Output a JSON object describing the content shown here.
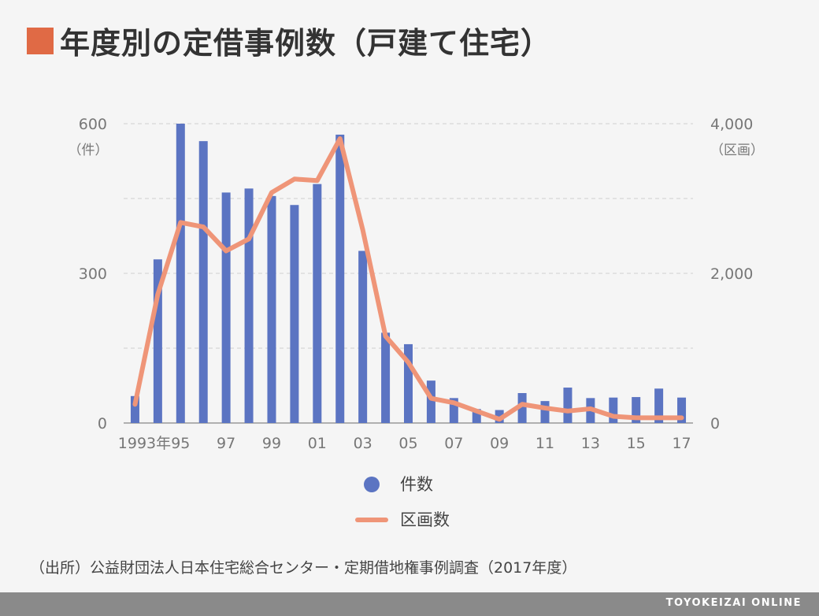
{
  "header": {
    "title": "年度別の定借事例数（戸建て住宅）",
    "title_square_color": "#e06a45"
  },
  "chart_data": {
    "type": "bar",
    "title": "年度別の定借事例数（戸建て住宅）",
    "x": [
      "1993",
      "1994",
      "1995",
      "1996",
      "1997",
      "1998",
      "1999",
      "2000",
      "2001",
      "2002",
      "2003",
      "2004",
      "2005",
      "2006",
      "2007",
      "2008",
      "2009",
      "2010",
      "2011",
      "2012",
      "2013",
      "2014",
      "2015",
      "2016",
      "2017"
    ],
    "x_tick_labels": [
      "1993年",
      "95",
      "97",
      "99",
      "01",
      "03",
      "05",
      "07",
      "09",
      "11",
      "13",
      "15",
      "17"
    ],
    "series": [
      {
        "name": "件数",
        "type": "bar",
        "axis": "left",
        "color": "#5b74c2",
        "values": [
          54,
          328,
          600,
          565,
          462,
          470,
          455,
          437,
          479,
          578,
          345,
          181,
          158,
          85,
          50,
          28,
          26,
          60,
          44,
          71,
          50,
          51,
          52,
          69,
          51
        ]
      },
      {
        "name": "区画数",
        "type": "line",
        "axis": "right",
        "color": "#ef9578",
        "values": [
          250,
          1720,
          2680,
          2620,
          2300,
          2460,
          3080,
          3260,
          3240,
          3800,
          2580,
          1160,
          810,
          330,
          270,
          160,
          50,
          250,
          200,
          160,
          190,
          90,
          70,
          70,
          70
        ]
      }
    ],
    "y_left": {
      "range": [
        0,
        600
      ],
      "ticks": [
        "0",
        "300",
        "600"
      ],
      "unit": "（件）"
    },
    "y_right": {
      "range": [
        0,
        4000
      ],
      "ticks": [
        "0",
        "2,000",
        "4,000"
      ],
      "unit": "（区画）"
    },
    "grid": true,
    "legend_position": "bottom-center"
  },
  "legend": {
    "bars_label": "件数",
    "line_label": "区画数"
  },
  "source": "（出所）公益財団法人日本住宅総合センター・定期借地権事例調査（2017年度）",
  "footer": {
    "brand": "TOYOKEIZAI ONLINE",
    "bar_color": "#8a8a8a"
  }
}
